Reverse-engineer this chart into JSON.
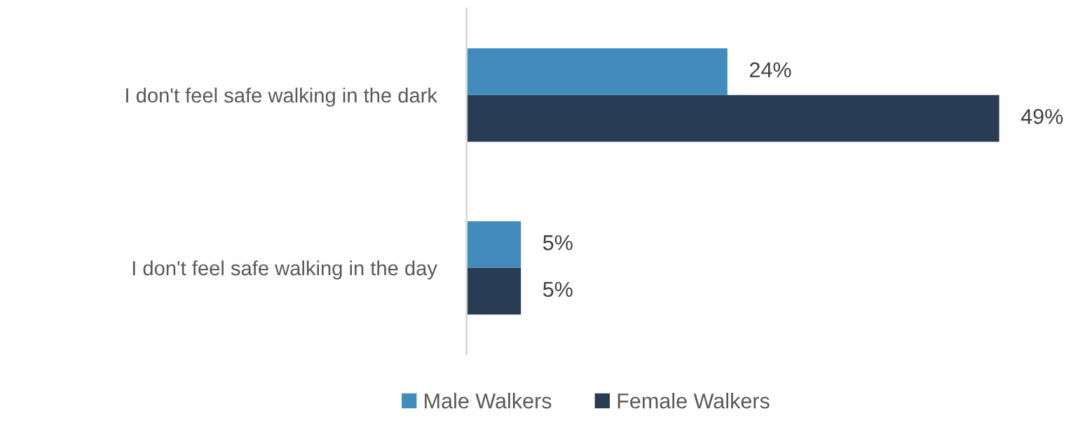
{
  "chart_data": {
    "type": "bar",
    "orientation": "horizontal",
    "categories": [
      "I don't feel safe walking in the dark",
      "I don't feel safe walking in the day"
    ],
    "series": [
      {
        "name": "Male Walkers",
        "color": "#418cbd",
        "values": [
          24,
          5
        ],
        "value_labels": [
          "24%",
          "5%"
        ]
      },
      {
        "name": "Female Walkers",
        "color": "#283c53",
        "values": [
          49,
          5
        ],
        "value_labels": [
          "49%",
          "5%"
        ]
      }
    ],
    "legend": "bottom",
    "grid": false,
    "tick_labels": "y"
  }
}
